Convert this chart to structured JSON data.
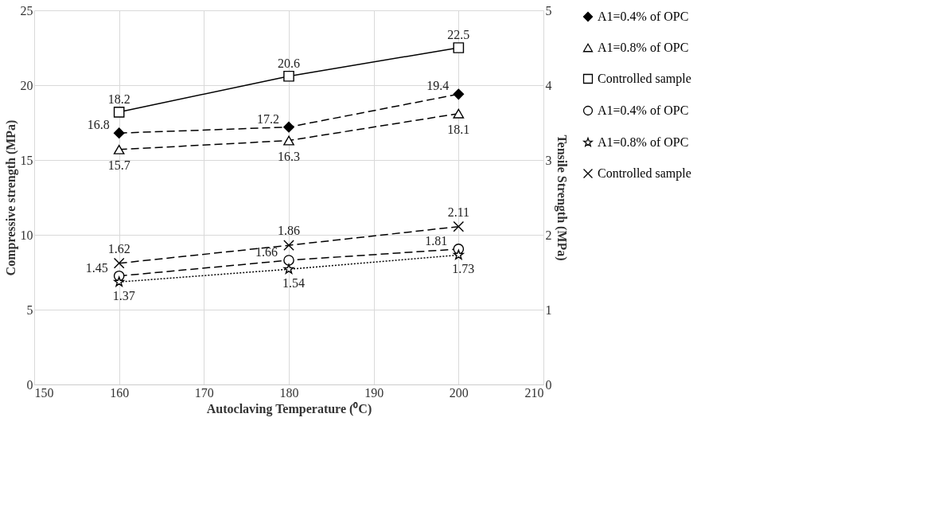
{
  "chart_data": {
    "type": "line",
    "xlabel": "Autoclaving Temperature (⁰C)",
    "ylabel": "Compressive strength (MPa)",
    "y2label": "Tensile Strength (MPa)",
    "x": [
      160,
      180,
      200
    ],
    "series": [
      {
        "name": "A1=0.4% of OPC",
        "color": "#000000",
        "values": [
          16.8,
          17.2,
          19.4
        ],
        "marker": "diamond",
        "line_style": "dashed"
      },
      {
        "name": "A1=0.8% of OPC",
        "color": "#000000",
        "values": [
          15.7,
          16.3,
          18.1
        ],
        "marker": "triangle",
        "line_style": "dashed"
      },
      {
        "name": "Controlled sample",
        "color": "#000000",
        "values": [
          18.2,
          20.6,
          22.5
        ],
        "marker": "square",
        "line_style": "solid"
      },
      {
        "name": "A1=0.4% of OPC",
        "color": "#000000",
        "values": [
          1.45,
          1.66,
          1.81
        ],
        "marker": "circle",
        "line_style": "dashed",
        "axis": "y2"
      },
      {
        "name": "A1=0.8% of OPC",
        "color": "#000000",
        "values": [
          1.37,
          1.54,
          1.73
        ],
        "marker": "star",
        "line_style": "dotted",
        "axis": "y2"
      },
      {
        "name": "Controlled sample",
        "color": "#000000",
        "values": [
          1.62,
          1.86,
          2.11
        ],
        "marker": "cross",
        "line_style": "dashed",
        "axis": "y2"
      }
    ],
    "xlim": [
      150,
      210
    ],
    "xticks": [
      150,
      160,
      170,
      180,
      190,
      200,
      210
    ],
    "ylim": [
      0,
      25
    ],
    "yticks": [
      0,
      5,
      10,
      15,
      20,
      25
    ],
    "y2lim": [
      0,
      5
    ],
    "y2ticks": [
      0,
      1,
      2,
      3,
      4,
      5
    ],
    "grid": true,
    "legend": "right",
    "data_labels": true
  }
}
